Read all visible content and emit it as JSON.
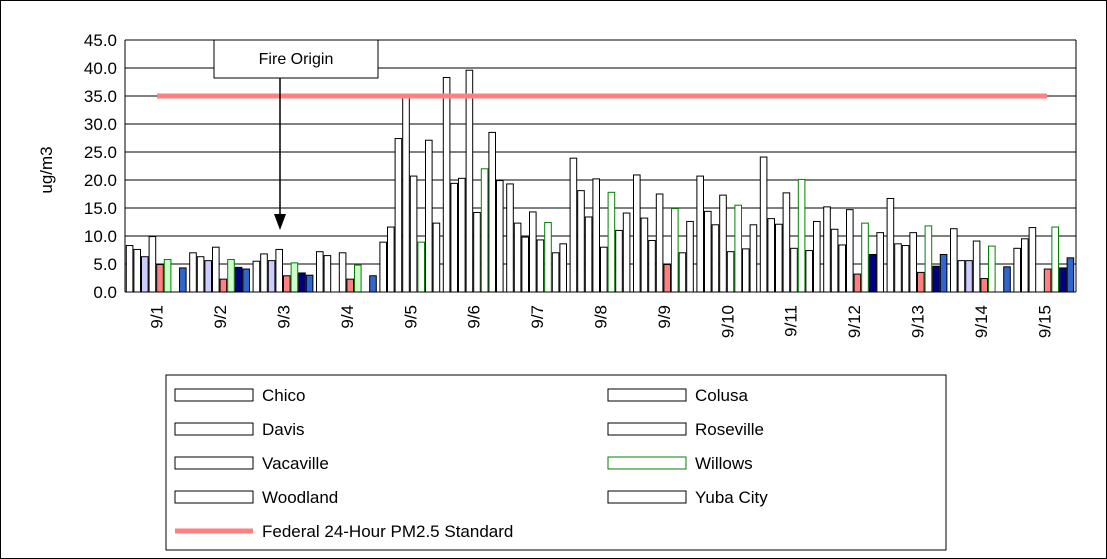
{
  "chart_data": {
    "type": "bar",
    "ylabel": "ug/m3",
    "ylim": [
      0,
      45
    ],
    "yticks": [
      "0.0",
      "5.0",
      "10.0",
      "15.0",
      "20.0",
      "25.0",
      "30.0",
      "35.0",
      "40.0",
      "45.0"
    ],
    "grid": true,
    "legend_placement": "bottom",
    "categories": [
      "9/1",
      "9/2",
      "9/3",
      "9/4",
      "9/5",
      "9/6",
      "9/7",
      "9/8",
      "9/9",
      "9/10",
      "9/11",
      "9/12",
      "9/13",
      "9/14",
      "9/15"
    ],
    "series": [
      {
        "name": "Chico",
        "fill": "#ffffff",
        "stroke": "#000000",
        "values": [
          8.3,
          7.0,
          5.5,
          7.2,
          8.9,
          38.3,
          19.3,
          23.9,
          20.9,
          20.7,
          24.1,
          15.2,
          16.7,
          11.3,
          7.8
        ]
      },
      {
        "name": "Colusa",
        "fill": "#ffffff",
        "stroke": "#000000",
        "values": [
          7.6,
          6.3,
          6.8,
          6.5,
          11.6,
          19.4,
          12.3,
          18.1,
          13.2,
          14.4,
          13.1,
          11.2,
          8.6,
          5.6,
          9.5
        ]
      },
      {
        "name": "Davis",
        "fill": "#ffffff",
        "stroke": "#000000",
        "values": [
          6.3,
          5.6,
          5.6,
          null,
          27.4,
          20.3,
          9.8,
          13.4,
          9.2,
          12.0,
          12.1,
          8.4,
          8.3,
          5.6,
          11.5
        ]
      },
      {
        "name": "Roseville",
        "fill": "#ffffff",
        "stroke": "#000000",
        "values": [
          9.9,
          8.0,
          7.6,
          7.0,
          34.7,
          39.6,
          14.3,
          20.2,
          17.5,
          17.3,
          17.7,
          14.7,
          10.6,
          9.1,
          null
        ]
      },
      {
        "name": "Vacaville",
        "fill": "#ffffff",
        "stroke": "#000000",
        "values": [
          4.9,
          2.3,
          2.9,
          2.3,
          20.7,
          14.2,
          9.3,
          8.0,
          4.9,
          7.2,
          7.8,
          3.2,
          3.5,
          2.4,
          4.1
        ]
      },
      {
        "name": "Willows",
        "fill": "#ffffff",
        "stroke": "#008000",
        "values": [
          5.8,
          5.8,
          5.2,
          4.8,
          8.9,
          22.0,
          12.4,
          17.8,
          14.9,
          15.5,
          20.1,
          12.3,
          11.8,
          8.2,
          11.6
        ]
      },
      {
        "name": "Woodland",
        "fill": "#ffffff",
        "stroke": "#000000",
        "values": [
          null,
          4.4,
          3.4,
          null,
          27.1,
          28.5,
          7.0,
          11.0,
          7.0,
          7.7,
          7.4,
          6.7,
          4.6,
          null,
          4.3
        ]
      },
      {
        "name": "Yuba City",
        "fill": "#ffffff",
        "stroke": "#000000",
        "values": [
          4.3,
          4.1,
          3.0,
          2.9,
          12.3,
          19.9,
          8.6,
          14.1,
          12.6,
          12.0,
          12.6,
          10.6,
          6.7,
          4.5,
          6.1
        ]
      }
    ],
    "small_bar_fills": [
      "#ffffff",
      "#ffffff",
      "#ccccff",
      "#993366",
      "#ff8080",
      "#ccffcc",
      "#000080",
      "#3366cc"
    ],
    "reference_line": {
      "name": "Federal 24-Hour PM2.5 Standard",
      "value": 35.0,
      "color": "#ff8080"
    },
    "annotation": {
      "text": "Fire Origin",
      "category": "9/3"
    }
  }
}
